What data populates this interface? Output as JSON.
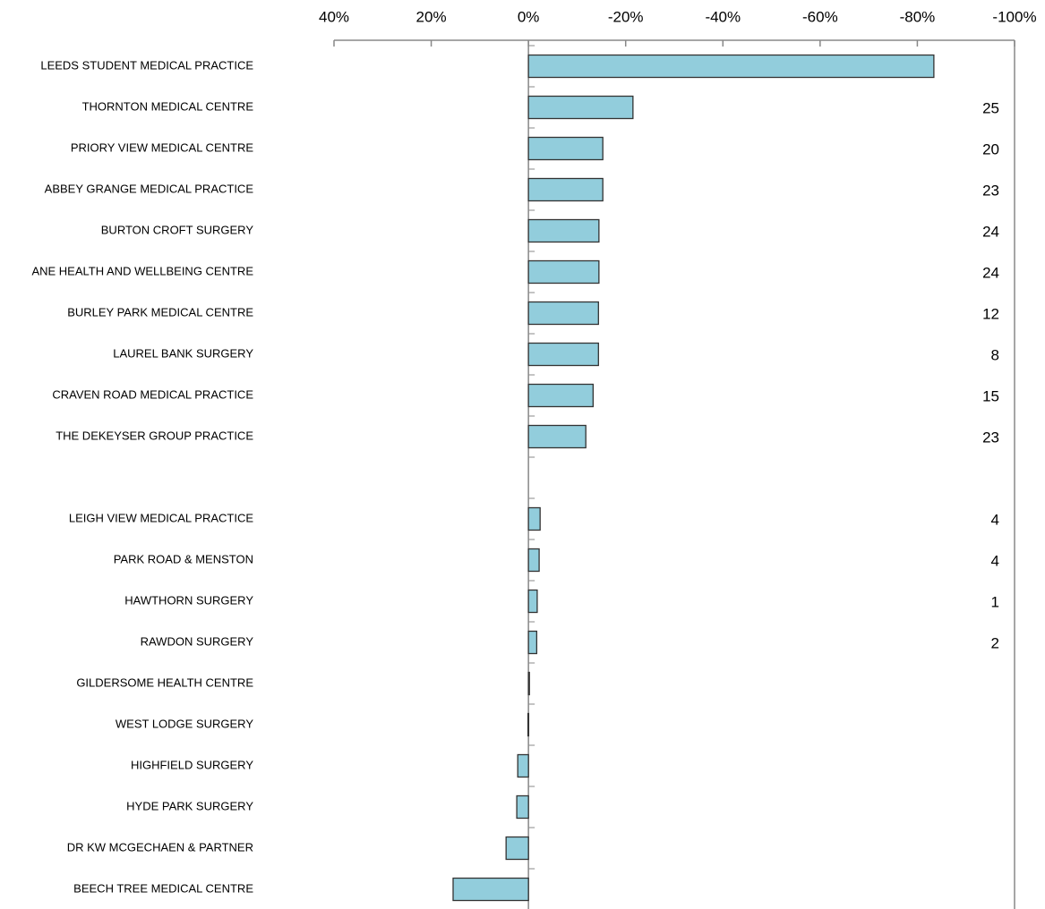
{
  "chart_data": {
    "type": "bar",
    "orientation": "horizontal",
    "categories": [
      "LEEDS STUDENT MEDICAL PRACTICE",
      "THORNTON MEDICAL CENTRE",
      "PRIORY VIEW MEDICAL CENTRE",
      "ABBEY GRANGE MEDICAL PRACTICE",
      "BURTON CROFT SURGERY",
      "ANE HEALTH AND WELLBEING CENTRE",
      "BURLEY PARK MEDICAL CENTRE",
      "LAUREL BANK SURGERY",
      "CRAVEN ROAD MEDICAL PRACTICE",
      "THE DEKEYSER GROUP PRACTICE",
      null,
      "LEIGH VIEW MEDICAL PRACTICE",
      "PARK ROAD & MENSTON",
      "HAWTHORN SURGERY",
      "RAWDON SURGERY",
      "GILDERSOME HEALTH CENTRE",
      "WEST LODGE SURGERY",
      "HIGHFIELD SURGERY",
      "HYDE PARK SURGERY",
      "DR KW MCGECHAEN & PARTNER",
      "BEECH TREE MEDICAL CENTRE"
    ],
    "values": [
      -83.4,
      -21.5,
      -15.3,
      -15.3,
      -14.5,
      -14.5,
      -14.4,
      -14.4,
      -13.3,
      -11.8,
      null,
      -2.4,
      -2.2,
      -1.8,
      -1.7,
      -0.2,
      0.1,
      2.2,
      2.4,
      4.6,
      15.5
    ],
    "counts": [
      null,
      25,
      20,
      23,
      24,
      24,
      12,
      8,
      15,
      23,
      null,
      4,
      4,
      1,
      2,
      null,
      null,
      null,
      null,
      null,
      null
    ],
    "color": "#92cddc",
    "xlim": [
      40,
      -100
    ],
    "xticks": [
      {
        "value": 40,
        "label": "40%"
      },
      {
        "value": 20,
        "label": "20%"
      },
      {
        "value": 0,
        "label": "0%"
      },
      {
        "value": -20,
        "label": "-20%"
      },
      {
        "value": -40,
        "label": "-40%"
      },
      {
        "value": -60,
        "label": "-60%"
      },
      {
        "value": -80,
        "label": "-80%"
      },
      {
        "value": -100,
        "label": "-100%"
      }
    ]
  }
}
